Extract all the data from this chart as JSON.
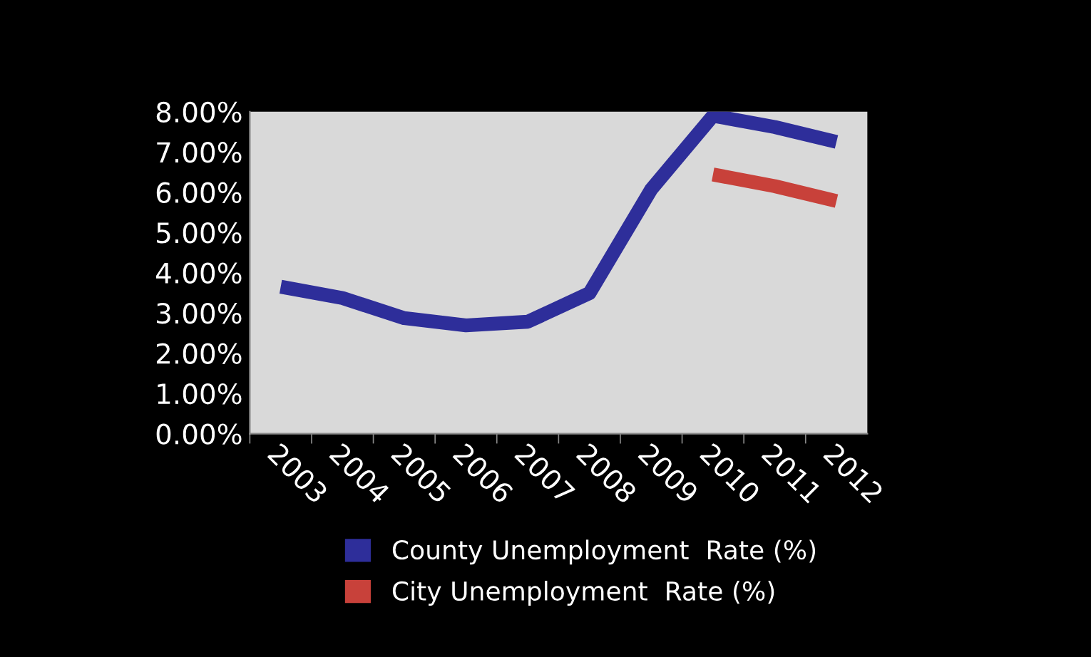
{
  "chart_data": {
    "type": "line",
    "categories": [
      "2003",
      "2004",
      "2005",
      "2006",
      "2007",
      "2008",
      "2009",
      "2010",
      "2011",
      "2012"
    ],
    "series": [
      {
        "name": "County Unemployment  Rate (%)",
        "color": "#2e2e9a",
        "values": [
          3.65,
          3.37,
          2.87,
          2.69,
          2.78,
          3.49,
          6.07,
          7.9,
          7.62,
          7.25
        ]
      },
      {
        "name": "City Unemployment  Rate (%)",
        "color": "#c8413a",
        "values": [
          null,
          null,
          null,
          null,
          null,
          null,
          null,
          6.44,
          6.15,
          5.78
        ]
      }
    ],
    "ylim": [
      0,
      8
    ],
    "yticks": [
      {
        "value": 0,
        "label": "0.00%"
      },
      {
        "value": 1,
        "label": "1.00%"
      },
      {
        "value": 2,
        "label": "2.00%"
      },
      {
        "value": 3,
        "label": "3.00%"
      },
      {
        "value": 4,
        "label": "4.00%"
      },
      {
        "value": 5,
        "label": "5.00%"
      },
      {
        "value": 6,
        "label": "6.00%"
      },
      {
        "value": 7,
        "label": "7.00%"
      },
      {
        "value": 8,
        "label": "8.00%"
      }
    ],
    "grid": false,
    "legend": "bottom",
    "marker": "none",
    "line_style": "solid"
  }
}
